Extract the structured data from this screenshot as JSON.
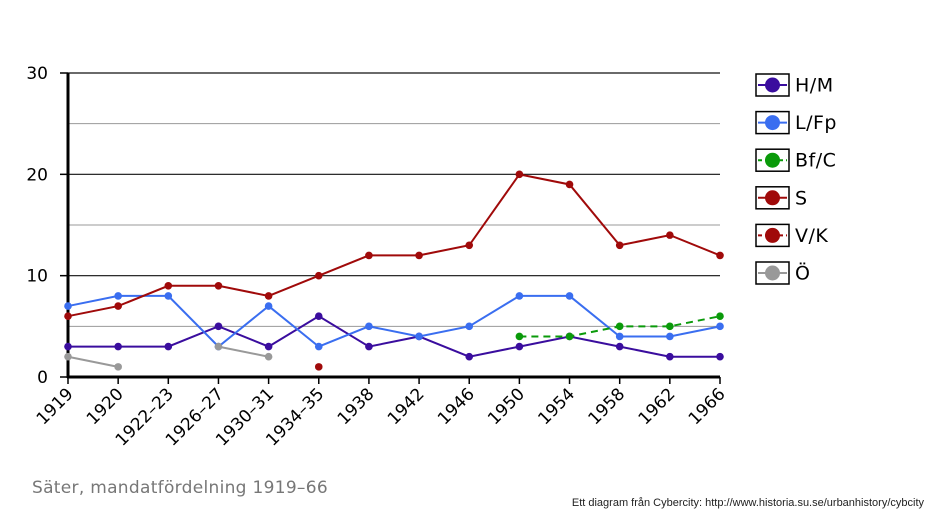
{
  "caption": "Säter, mandatfördelning 1919–66",
  "credit": "Ett diagram från Cybercity: http://www.historia.su.se/urbanhistory/cybcity",
  "chart_data": {
    "type": "line",
    "title": "",
    "xlabel": "",
    "ylabel": "",
    "ylim": [
      0,
      30
    ],
    "yticks": [
      0,
      10,
      20,
      30
    ],
    "categories": [
      "1919",
      "1920",
      "1922–23",
      "1926–27",
      "1930–31",
      "1934–35",
      "1938",
      "1942",
      "1946",
      "1950",
      "1954",
      "1958",
      "1962",
      "1966"
    ],
    "legend_position": "right",
    "series": [
      {
        "name": "H/M",
        "color": "#3a0d9e",
        "dashed": false,
        "values": [
          3,
          3,
          3,
          5,
          3,
          6,
          3,
          4,
          2,
          3,
          4,
          3,
          2,
          2
        ]
      },
      {
        "name": "L/Fp",
        "color": "#3a6ef0",
        "dashed": false,
        "values": [
          7,
          8,
          8,
          3,
          7,
          3,
          5,
          4,
          5,
          8,
          8,
          4,
          4,
          5
        ]
      },
      {
        "name": "Bf/C",
        "color": "#0a9a0a",
        "dashed": true,
        "values": [
          null,
          null,
          null,
          null,
          null,
          null,
          null,
          null,
          null,
          4,
          4,
          5,
          5,
          6
        ]
      },
      {
        "name": "S",
        "color": "#a00a0a",
        "dashed": false,
        "values": [
          6,
          7,
          9,
          9,
          8,
          10,
          12,
          12,
          13,
          20,
          19,
          13,
          14,
          12
        ]
      },
      {
        "name": "V/K",
        "color": "#a00a0a",
        "dashed": true,
        "values": [
          null,
          null,
          null,
          null,
          null,
          1,
          null,
          null,
          null,
          null,
          null,
          null,
          null,
          null
        ]
      },
      {
        "name": "Ö",
        "color": "#999999",
        "dashed": false,
        "values": [
          2,
          1,
          null,
          3,
          2,
          null,
          null,
          null,
          null,
          null,
          null,
          null,
          null,
          null
        ]
      }
    ]
  }
}
